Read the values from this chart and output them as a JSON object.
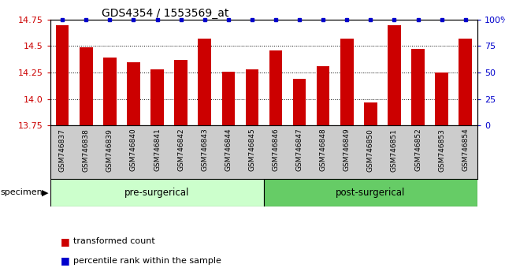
{
  "title": "GDS4354 / 1553569_at",
  "categories": [
    "GSM746837",
    "GSM746838",
    "GSM746839",
    "GSM746840",
    "GSM746841",
    "GSM746842",
    "GSM746843",
    "GSM746844",
    "GSM746845",
    "GSM746846",
    "GSM746847",
    "GSM746848",
    "GSM746849",
    "GSM746850",
    "GSM746851",
    "GSM746852",
    "GSM746853",
    "GSM746854"
  ],
  "values": [
    14.7,
    14.49,
    14.39,
    14.35,
    14.28,
    14.37,
    14.57,
    14.26,
    14.28,
    14.46,
    14.19,
    14.31,
    14.57,
    13.97,
    14.7,
    14.47,
    14.25,
    14.57
  ],
  "percentile_values": [
    100,
    100,
    100,
    100,
    100,
    100,
    100,
    100,
    100,
    100,
    100,
    100,
    100,
    100,
    100,
    100,
    100,
    100
  ],
  "bar_color": "#cc0000",
  "percentile_color": "#0000cc",
  "ylim": [
    13.75,
    14.75
  ],
  "y_ticks": [
    13.75,
    14.0,
    14.25,
    14.5,
    14.75
  ],
  "right_ylim": [
    0,
    100
  ],
  "right_yticks": [
    0,
    25,
    50,
    75,
    100
  ],
  "right_yticklabels": [
    "0",
    "25",
    "50",
    "75",
    "100%"
  ],
  "pre_surgical_count": 9,
  "post_surgical_count": 9,
  "pre_surgical_label": "pre-surgerical",
  "post_surgical_label": "post-surgerical",
  "pre_surgical_color": "#ccffcc",
  "post_surgical_color": "#66cc66",
  "specimen_label": "specimen",
  "legend_bar_label": "transformed count",
  "legend_pct_label": "percentile rank within the sample",
  "bar_color_hex": "#cc0000",
  "pct_color_hex": "#0000cc",
  "tick_label_area_color": "#cccccc",
  "background_color": "#ffffff"
}
